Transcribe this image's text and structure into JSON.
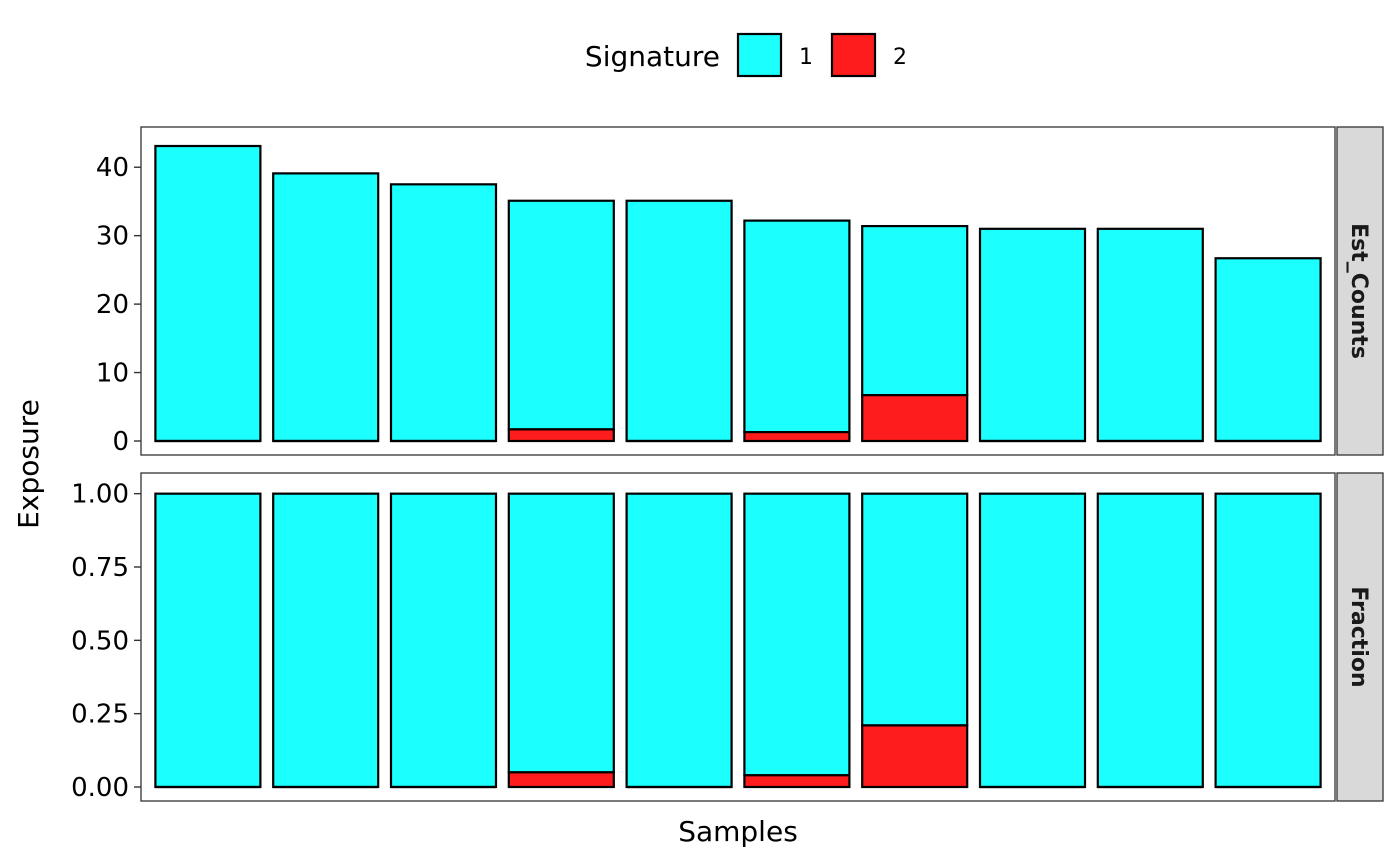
{
  "chart_data": {
    "type": "bar",
    "stacked": true,
    "legend": {
      "title": "Signature",
      "position": "top",
      "entries": [
        "1",
        "2"
      ]
    },
    "colors": {
      "1": "#1CFFFF",
      "2": "#FF1C1C"
    },
    "xlabel": "Samples",
    "ylabel": "Exposure",
    "n_samples": 10,
    "grid": false,
    "facets": [
      {
        "strip": "Est_Counts",
        "ylim": [
          0,
          45
        ],
        "yticks": [
          0,
          10,
          20,
          30,
          40
        ],
        "ytick_labels": [
          "0",
          "10",
          "20",
          "30",
          "40"
        ],
        "series": [
          {
            "name": "1",
            "values": [
              43.1,
              39.1,
              37.5,
              33.4,
              35.1,
              30.9,
              24.7,
              31.0,
              31.0,
              26.7
            ]
          },
          {
            "name": "2",
            "values": [
              0,
              0,
              0,
              1.7,
              0,
              1.3,
              6.7,
              0,
              0,
              0
            ]
          }
        ]
      },
      {
        "strip": "Fraction",
        "ylim": [
          0,
          1.05
        ],
        "yticks": [
          0,
          0.25,
          0.5,
          0.75,
          1.0
        ],
        "ytick_labels": [
          "0.00",
          "0.25",
          "0.50",
          "0.75",
          "1.00"
        ],
        "series": [
          {
            "name": "1",
            "values": [
              1.0,
              1.0,
              1.0,
              0.95,
              1.0,
              0.96,
              0.79,
              1.0,
              1.0,
              1.0
            ]
          },
          {
            "name": "2",
            "values": [
              0,
              0,
              0,
              0.05,
              0,
              0.04,
              0.21,
              0,
              0,
              0
            ]
          }
        ]
      }
    ]
  }
}
